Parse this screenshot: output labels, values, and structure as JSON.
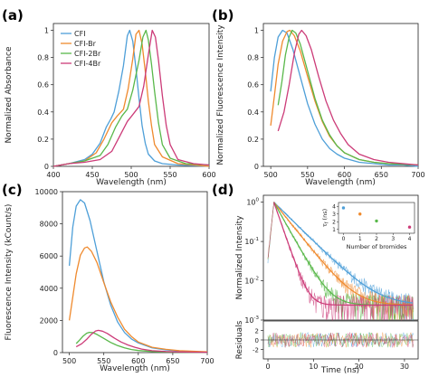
{
  "series_colors": [
    "#4e9fd8",
    "#ef8a2e",
    "#59b84a",
    "#cc3b78"
  ],
  "chart_data": [
    {
      "panel": "(a)",
      "type": "line",
      "xlabel": "Wavelength (nm)",
      "ylabel": "Normalized Absorbance",
      "xlim": [
        400,
        600
      ],
      "ylim": [
        0.0,
        1.05
      ],
      "xticks": [
        400,
        450,
        500,
        550,
        600
      ],
      "yticks": [
        0.0,
        0.2,
        0.4,
        0.6,
        0.8,
        1.0
      ],
      "legend": "top-left",
      "series": [
        {
          "name": "CFI",
          "x": [
            400,
            420,
            440,
            450,
            460,
            468,
            474,
            478,
            484,
            490,
            495,
            498,
            502,
            506,
            510,
            514,
            518,
            522,
            530,
            540,
            560,
            600
          ],
          "y": [
            0.0,
            0.02,
            0.05,
            0.09,
            0.17,
            0.29,
            0.35,
            0.4,
            0.55,
            0.74,
            0.96,
            1.0,
            0.92,
            0.72,
            0.5,
            0.3,
            0.17,
            0.09,
            0.04,
            0.02,
            0.01,
            0.0
          ]
        },
        {
          "name": "CFI-Br",
          "x": [
            400,
            420,
            440,
            455,
            465,
            475,
            482,
            490,
            496,
            502,
            506,
            510,
            514,
            518,
            522,
            526,
            530,
            540,
            560,
            600
          ],
          "y": [
            0.0,
            0.02,
            0.04,
            0.1,
            0.2,
            0.32,
            0.37,
            0.42,
            0.57,
            0.79,
            0.97,
            1.0,
            0.9,
            0.7,
            0.48,
            0.3,
            0.16,
            0.07,
            0.02,
            0.0
          ]
        },
        {
          "name": "CFI-2Br",
          "x": [
            400,
            420,
            440,
            460,
            470,
            480,
            488,
            495,
            502,
            510,
            515,
            519,
            522,
            526,
            530,
            535,
            540,
            550,
            570,
            600
          ],
          "y": [
            0.0,
            0.02,
            0.04,
            0.08,
            0.16,
            0.29,
            0.37,
            0.42,
            0.56,
            0.78,
            0.95,
            1.0,
            0.93,
            0.75,
            0.55,
            0.32,
            0.16,
            0.06,
            0.02,
            0.01
          ]
        },
        {
          "name": "CFI-4Br",
          "x": [
            400,
            420,
            440,
            460,
            475,
            485,
            495,
            502,
            510,
            516,
            522,
            527,
            531,
            535,
            540,
            545,
            550,
            560,
            580,
            600
          ],
          "y": [
            0.0,
            0.02,
            0.03,
            0.05,
            0.11,
            0.22,
            0.33,
            0.38,
            0.44,
            0.59,
            0.82,
            1.0,
            0.95,
            0.78,
            0.52,
            0.3,
            0.16,
            0.05,
            0.02,
            0.01
          ]
        }
      ]
    },
    {
      "panel": "(b)",
      "type": "line",
      "xlabel": "Wavelength (nm)",
      "ylabel": "Normalized Fluorescence Intensity",
      "xlim": [
        490,
        700
      ],
      "ylim": [
        0.0,
        1.05
      ],
      "xticks": [
        500,
        550,
        600,
        650,
        700
      ],
      "yticks": [
        0.0,
        0.2,
        0.4,
        0.6,
        0.8,
        1.0
      ],
      "series": [
        {
          "name": "CFI",
          "x": [
            500,
            505,
            510,
            516,
            522,
            530,
            540,
            550,
            560,
            570,
            580,
            590,
            600,
            620,
            640,
            660,
            680,
            700
          ],
          "y": [
            0.55,
            0.8,
            0.95,
            1.0,
            0.98,
            0.86,
            0.66,
            0.46,
            0.31,
            0.2,
            0.13,
            0.09,
            0.06,
            0.03,
            0.02,
            0.01,
            0.01,
            0.0
          ]
        },
        {
          "name": "CFI-Br",
          "x": [
            500,
            505,
            510,
            516,
            522,
            526,
            532,
            540,
            550,
            560,
            570,
            580,
            590,
            600,
            620,
            640,
            660,
            700
          ],
          "y": [
            0.3,
            0.52,
            0.75,
            0.92,
            0.99,
            1.0,
            0.96,
            0.85,
            0.66,
            0.48,
            0.33,
            0.22,
            0.15,
            0.1,
            0.05,
            0.03,
            0.02,
            0.01
          ]
        },
        {
          "name": "CFI-2Br",
          "x": [
            510,
            515,
            520,
            525,
            529,
            534,
            540,
            550,
            560,
            570,
            580,
            590,
            600,
            620,
            640,
            660,
            700
          ],
          "y": [
            0.45,
            0.62,
            0.82,
            0.95,
            1.0,
            0.98,
            0.9,
            0.7,
            0.5,
            0.34,
            0.23,
            0.15,
            0.1,
            0.05,
            0.03,
            0.02,
            0.01
          ]
        },
        {
          "name": "CFI-4Br",
          "x": [
            510,
            518,
            525,
            532,
            538,
            542,
            548,
            555,
            565,
            575,
            585,
            595,
            605,
            620,
            640,
            660,
            700
          ],
          "y": [
            0.26,
            0.4,
            0.6,
            0.83,
            0.97,
            1.0,
            0.96,
            0.86,
            0.66,
            0.48,
            0.34,
            0.24,
            0.16,
            0.09,
            0.05,
            0.03,
            0.01
          ]
        }
      ]
    },
    {
      "panel": "(c)",
      "type": "line",
      "xlabel": "Wavelength (nm)",
      "ylabel": "Fluorescence Intensity (kCount/s)",
      "xlim": [
        490,
        700
      ],
      "ylim": [
        0,
        10000
      ],
      "xticks": [
        500,
        550,
        600,
        650,
        700
      ],
      "yticks": [
        0,
        2000,
        4000,
        6000,
        8000,
        10000
      ],
      "series": [
        {
          "name": "CFI",
          "x": [
            500,
            505,
            510,
            516,
            522,
            530,
            540,
            550,
            560,
            570,
            580,
            590,
            600,
            620,
            640,
            660,
            680,
            700
          ],
          "y": [
            5400,
            7800,
            9100,
            9500,
            9300,
            8200,
            6300,
            4400,
            2950,
            1900,
            1250,
            850,
            600,
            300,
            170,
            100,
            60,
            30
          ]
        },
        {
          "name": "CFI-Br",
          "x": [
            500,
            505,
            510,
            516,
            522,
            526,
            532,
            540,
            550,
            560,
            570,
            580,
            590,
            600,
            620,
            640,
            660,
            700
          ],
          "y": [
            2000,
            3450,
            4900,
            6050,
            6500,
            6560,
            6300,
            5600,
            4350,
            3150,
            2200,
            1450,
            1000,
            660,
            330,
            200,
            120,
            50
          ]
        },
        {
          "name": "CFI-2Br",
          "x": [
            510,
            515,
            520,
            525,
            529,
            534,
            540,
            550,
            560,
            570,
            580,
            590,
            600,
            620,
            640,
            660,
            700
          ],
          "y": [
            560,
            780,
            1030,
            1200,
            1260,
            1240,
            1130,
            880,
            630,
            430,
            290,
            190,
            130,
            70,
            40,
            25,
            10
          ]
        },
        {
          "name": "CFI-4Br",
          "x": [
            510,
            518,
            525,
            532,
            538,
            542,
            548,
            555,
            565,
            575,
            585,
            595,
            605,
            620,
            640,
            660,
            700
          ],
          "y": [
            360,
            550,
            820,
            1140,
            1340,
            1380,
            1330,
            1190,
            910,
            660,
            470,
            330,
            220,
            120,
            70,
            40,
            15
          ]
        }
      ]
    },
    {
      "panel": "(d)",
      "type": "line",
      "xlabel": "Time (ns)",
      "ylabel": "Normalized Intensity",
      "residuals_label": "Residuals",
      "xlim": [
        -1,
        33
      ],
      "xticks": [
        0,
        10,
        20,
        30
      ],
      "yscale": "log",
      "ylim": [
        0.001,
        1.5
      ],
      "yticks": [
        "10^0",
        "10^-1",
        "10^-2",
        "10^-3"
      ],
      "residuals_ylim": [
        -4,
        4
      ],
      "residuals_yticks": [
        -2,
        0,
        2
      ],
      "series": [
        {
          "name": "CFI",
          "lifetime_ns": 3.8
        },
        {
          "name": "CFI-Br",
          "lifetime_ns": 3.0
        },
        {
          "name": "CFI-2Br",
          "lifetime_ns": 2.1
        },
        {
          "name": "CFI-4Br",
          "lifetime_ns": 1.3
        }
      ],
      "inset": {
        "type": "scatter",
        "xlabel": "Number of bromides",
        "ylabel": "τ_f (ns)",
        "xlim": [
          -0.3,
          4.3
        ],
        "ylim": [
          0.5,
          4.5
        ],
        "xticks": [
          0,
          1,
          2,
          3,
          4
        ],
        "yticks": [
          1,
          2,
          3,
          4
        ],
        "x": [
          0,
          1,
          2,
          4
        ],
        "y": [
          3.8,
          3.0,
          2.1,
          1.3
        ]
      }
    }
  ],
  "ui": {
    "panel_a": "(a)",
    "panel_b": "(b)",
    "panel_c": "(c)",
    "panel_d": "(d)",
    "a_xlabel": "Wavelength (nm)",
    "a_ylabel": "Normalized Absorbance",
    "b_xlabel": "Wavelength (nm)",
    "b_ylabel": "Normalized Fluorescence Intensity",
    "c_xlabel": "Wavelength (nm)",
    "c_ylabel": "Fluorescence Intensity (kCount/s)",
    "d_xlabel": "Time (ns)",
    "d_ylabel": "Normalized Intensity",
    "d_residuals": "Residuals",
    "inset_xlabel": "Number of bromides",
    "inset_ylabel": "τ",
    "legend": [
      "CFI",
      "CFI-Br",
      "CFI-2Br",
      "CFI-4Br"
    ]
  }
}
